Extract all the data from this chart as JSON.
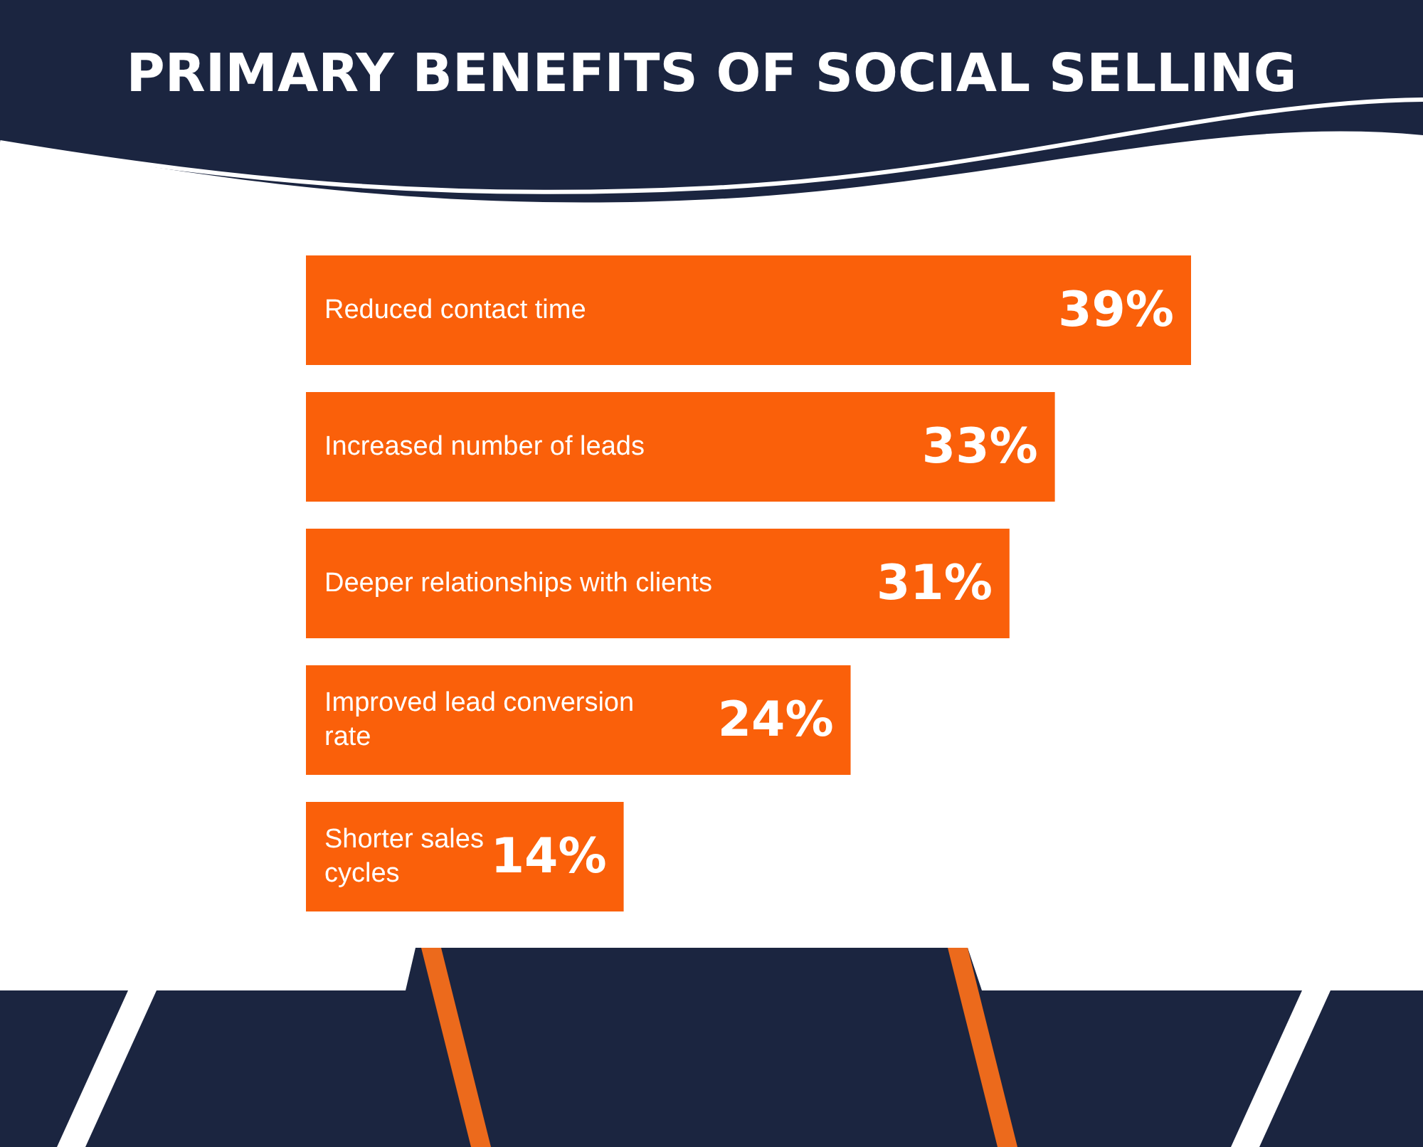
{
  "chart_data": {
    "type": "bar",
    "orientation": "horizontal",
    "title": "PRIMARY BENEFITS OF SOCIAL SELLING",
    "categories": [
      "Reduced contact time",
      "Increased number of leads",
      "Deeper relationships with clients",
      "Improved lead conversion rate",
      "Shorter sales cycles"
    ],
    "values": [
      39,
      33,
      31,
      24,
      14
    ],
    "value_labels": [
      "39%",
      "33%",
      "31%",
      "24%",
      "14%"
    ],
    "color": "#fa600a"
  }
}
